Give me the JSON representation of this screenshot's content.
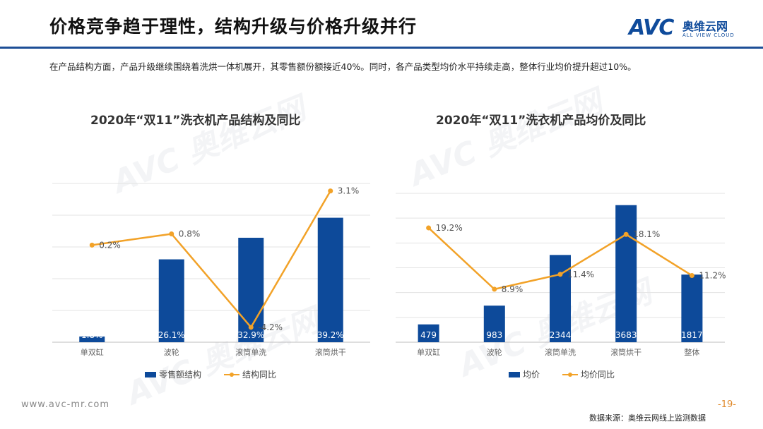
{
  "header": {
    "title": "价格竞争趋于理性，结构升级与价格升级并行",
    "logo_brand": "AVC",
    "logo_cn": "奥维云网",
    "logo_en": "ALL VIEW CLOUD"
  },
  "subtitle": "在产品结构方面，产品升级继续围绕着洗烘一体机展开，其零售额份额接近40%。同时，各产品类型均价水平持续走高，整体行业均价提升超过10%。",
  "watermark_text": "AVC 奥维云网",
  "chart_data": [
    {
      "type": "bar+line",
      "title": "2020年“双11”洗衣机产品结构及同比",
      "categories": [
        "单双缸",
        "波轮",
        "滚筒单洗",
        "滚筒烘干"
      ],
      "series": [
        {
          "name": "零售额结构",
          "kind": "bar",
          "values": [
            1.8,
            26.1,
            32.9,
            39.2
          ],
          "labels": [
            "1.8%",
            "26.1%",
            "32.9%",
            "39.2%"
          ],
          "color": "#0d4a9a"
        },
        {
          "name": "结构同比",
          "kind": "line",
          "values": [
            0.2,
            0.8,
            -4.2,
            3.1
          ],
          "labels": [
            "0.2%",
            "0.8%",
            "-4.2%",
            "3.1%"
          ],
          "color": "#f2a228"
        }
      ],
      "bar_ylim": [
        0,
        50
      ],
      "line_ylim": [
        -5,
        3.5
      ],
      "grid": true,
      "legend": "bottom"
    },
    {
      "type": "bar+line",
      "title": "2020年“双11”洗衣机产品均价及同比",
      "categories": [
        "单双缸",
        "波轮",
        "滚筒单洗",
        "滚筒烘干",
        "整体"
      ],
      "series": [
        {
          "name": "均价",
          "kind": "bar",
          "values": [
            479,
            983,
            2344,
            3683,
            1817
          ],
          "labels": [
            "479",
            "983",
            "2344",
            "3683",
            "1817"
          ],
          "color": "#0d4a9a"
        },
        {
          "name": "均价同比",
          "kind": "line",
          "values": [
            19.2,
            8.9,
            11.4,
            18.1,
            11.2
          ],
          "labels": [
            "19.2%",
            "8.9%",
            "11.4%",
            "18.1%",
            "11.2%"
          ],
          "color": "#f2a228"
        }
      ],
      "bar_ylim": [
        0,
        4000
      ],
      "line_ylim": [
        0,
        25
      ],
      "grid": true,
      "legend": "bottom"
    }
  ],
  "footer": {
    "url": "www.avc-mr.com",
    "page": "-19-",
    "source": "数据来源：奥维云网线上监测数据"
  }
}
